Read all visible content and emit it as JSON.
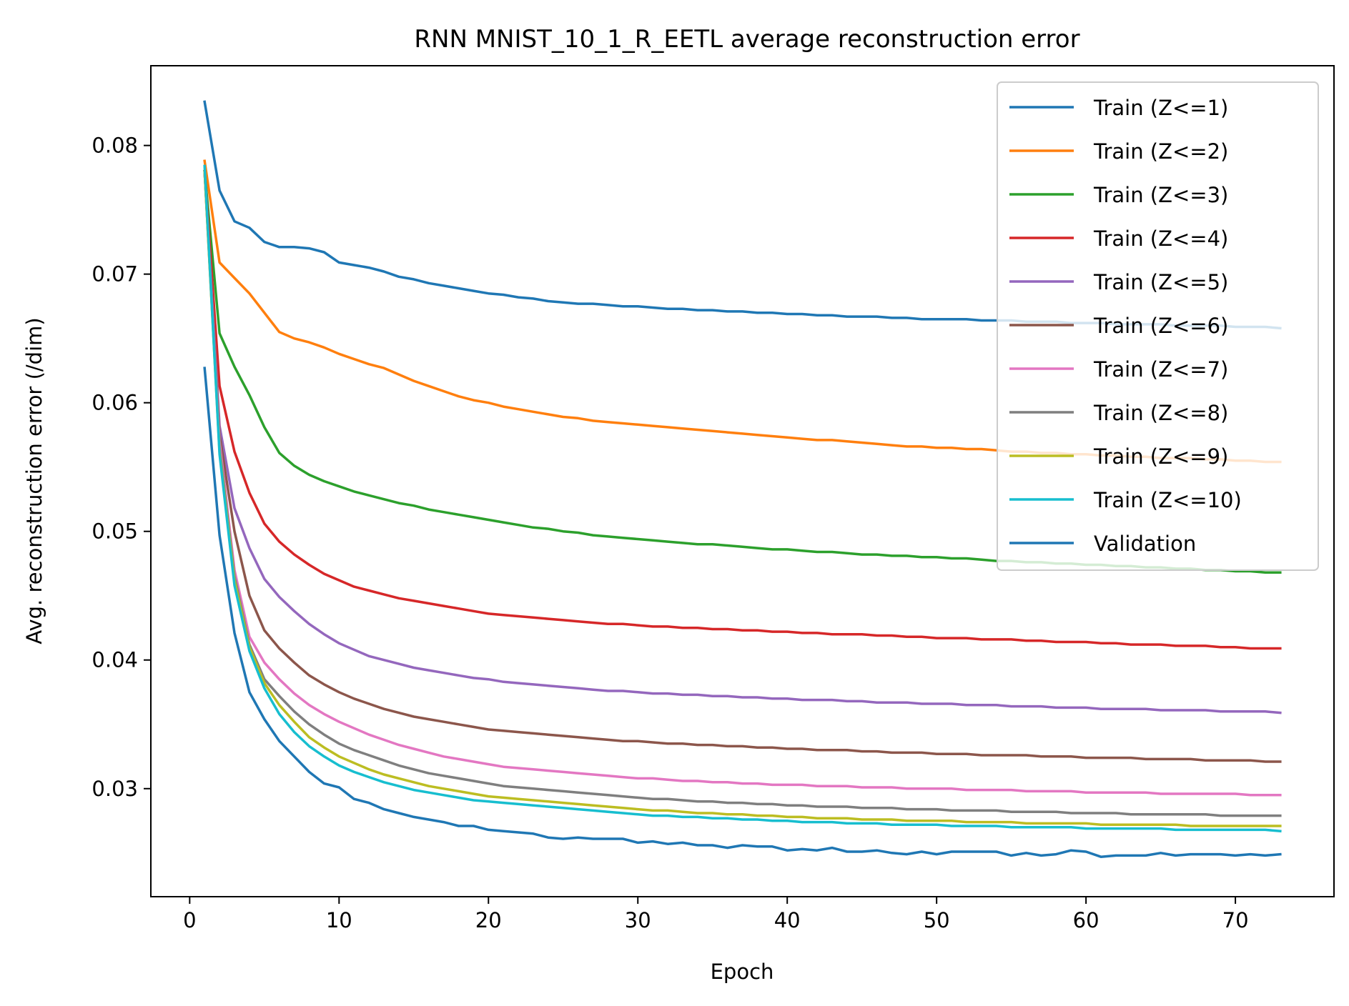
{
  "chart_data": {
    "type": "line",
    "title": "RNN MNIST_10_1_R_EETL average reconstruction error",
    "xlabel": "Epoch",
    "ylabel": "Avg. reconstruction error (/dim)",
    "xlim": [
      -2.6,
      76.6
    ],
    "ylim": [
      0.0216,
      0.0862
    ],
    "xticks": [
      0,
      10,
      20,
      30,
      40,
      50,
      60,
      70
    ],
    "yticks": [
      0.03,
      0.04,
      0.05,
      0.06,
      0.07,
      0.08
    ],
    "ytick_labels": [
      "0.03",
      "0.04",
      "0.05",
      "0.06",
      "0.07",
      "0.08"
    ],
    "xtick_labels": [
      "0",
      "10",
      "20",
      "30",
      "40",
      "50",
      "60",
      "70"
    ],
    "grid": false,
    "legend_position": "top-right",
    "x": [
      1,
      2,
      3,
      4,
      5,
      6,
      7,
      8,
      9,
      10,
      11,
      12,
      13,
      14,
      15,
      16,
      17,
      18,
      19,
      20,
      21,
      22,
      23,
      24,
      25,
      26,
      27,
      28,
      29,
      30,
      31,
      32,
      33,
      34,
      35,
      36,
      37,
      38,
      39,
      40,
      41,
      42,
      43,
      44,
      45,
      46,
      47,
      48,
      49,
      50,
      51,
      52,
      53,
      54,
      55,
      56,
      57,
      58,
      59,
      60,
      61,
      62,
      63,
      64,
      65,
      66,
      67,
      68,
      69,
      70,
      71,
      72,
      73
    ],
    "series": [
      {
        "name": "Train (Z<=1)",
        "color": "#1f77b4",
        "values": [
          0.0834,
          0.0765,
          0.0741,
          0.0736,
          0.0725,
          0.0721,
          0.0721,
          0.072,
          0.0717,
          0.0709,
          0.0707,
          0.0705,
          0.0702,
          0.0698,
          0.0696,
          0.0693,
          0.0691,
          0.0689,
          0.0687,
          0.0685,
          0.0684,
          0.0682,
          0.0681,
          0.0679,
          0.0678,
          0.0677,
          0.0677,
          0.0676,
          0.0675,
          0.0675,
          0.0674,
          0.0673,
          0.0673,
          0.0672,
          0.0672,
          0.0671,
          0.0671,
          0.067,
          0.067,
          0.0669,
          0.0669,
          0.0668,
          0.0668,
          0.0667,
          0.0667,
          0.0667,
          0.0666,
          0.0666,
          0.0665,
          0.0665,
          0.0665,
          0.0665,
          0.0664,
          0.0664,
          0.0664,
          0.0663,
          0.0663,
          0.0663,
          0.0662,
          0.0662,
          0.0662,
          0.0661,
          0.0661,
          0.0661,
          0.0661,
          0.066,
          0.066,
          0.066,
          0.066,
          0.0659,
          0.0659,
          0.0659,
          0.0658
        ]
      },
      {
        "name": "Train (Z<=2)",
        "color": "#ff7f0e",
        "values": [
          0.0788,
          0.0709,
          0.0697,
          0.0685,
          0.067,
          0.0655,
          0.065,
          0.0647,
          0.0643,
          0.0638,
          0.0634,
          0.063,
          0.0627,
          0.0622,
          0.0617,
          0.0613,
          0.0609,
          0.0605,
          0.0602,
          0.06,
          0.0597,
          0.0595,
          0.0593,
          0.0591,
          0.0589,
          0.0588,
          0.0586,
          0.0585,
          0.0584,
          0.0583,
          0.0582,
          0.0581,
          0.058,
          0.0579,
          0.0578,
          0.0577,
          0.0576,
          0.0575,
          0.0574,
          0.0573,
          0.0572,
          0.0571,
          0.0571,
          0.057,
          0.0569,
          0.0568,
          0.0567,
          0.0566,
          0.0566,
          0.0565,
          0.0565,
          0.0564,
          0.0564,
          0.0563,
          0.0562,
          0.0562,
          0.0561,
          0.0561,
          0.056,
          0.056,
          0.0559,
          0.0559,
          0.0558,
          0.0558,
          0.0557,
          0.0557,
          0.0557,
          0.0556,
          0.0556,
          0.0555,
          0.0555,
          0.0554,
          0.0554
        ]
      },
      {
        "name": "Train (Z<=3)",
        "color": "#2ca02c",
        "values": [
          0.078,
          0.0654,
          0.0628,
          0.0606,
          0.0581,
          0.0561,
          0.0551,
          0.0544,
          0.0539,
          0.0535,
          0.0531,
          0.0528,
          0.0525,
          0.0522,
          0.052,
          0.0517,
          0.0515,
          0.0513,
          0.0511,
          0.0509,
          0.0507,
          0.0505,
          0.0503,
          0.0502,
          0.05,
          0.0499,
          0.0497,
          0.0496,
          0.0495,
          0.0494,
          0.0493,
          0.0492,
          0.0491,
          0.049,
          0.049,
          0.0489,
          0.0488,
          0.0487,
          0.0486,
          0.0486,
          0.0485,
          0.0484,
          0.0484,
          0.0483,
          0.0482,
          0.0482,
          0.0481,
          0.0481,
          0.048,
          0.048,
          0.0479,
          0.0479,
          0.0478,
          0.0477,
          0.0477,
          0.0476,
          0.0476,
          0.0475,
          0.0475,
          0.0474,
          0.0474,
          0.0473,
          0.0473,
          0.0472,
          0.0472,
          0.0471,
          0.0471,
          0.047,
          0.047,
          0.0469,
          0.0469,
          0.0468,
          0.0468
        ]
      },
      {
        "name": "Train (Z<=4)",
        "color": "#d62728",
        "values": [
          0.078,
          0.0613,
          0.0562,
          0.053,
          0.0506,
          0.0492,
          0.0482,
          0.0474,
          0.0467,
          0.0462,
          0.0457,
          0.0454,
          0.0451,
          0.0448,
          0.0446,
          0.0444,
          0.0442,
          0.044,
          0.0438,
          0.0436,
          0.0435,
          0.0434,
          0.0433,
          0.0432,
          0.0431,
          0.043,
          0.0429,
          0.0428,
          0.0428,
          0.0427,
          0.0426,
          0.0426,
          0.0425,
          0.0425,
          0.0424,
          0.0424,
          0.0423,
          0.0423,
          0.0422,
          0.0422,
          0.0421,
          0.0421,
          0.042,
          0.042,
          0.042,
          0.0419,
          0.0419,
          0.0418,
          0.0418,
          0.0417,
          0.0417,
          0.0417,
          0.0416,
          0.0416,
          0.0416,
          0.0415,
          0.0415,
          0.0414,
          0.0414,
          0.0414,
          0.0413,
          0.0413,
          0.0412,
          0.0412,
          0.0412,
          0.0411,
          0.0411,
          0.0411,
          0.041,
          0.041,
          0.0409,
          0.0409,
          0.0409
        ]
      },
      {
        "name": "Train (Z<=5)",
        "color": "#9467bd",
        "values": [
          0.078,
          0.0582,
          0.0518,
          0.0487,
          0.0463,
          0.0449,
          0.0438,
          0.0428,
          0.042,
          0.0413,
          0.0408,
          0.0403,
          0.04,
          0.0397,
          0.0394,
          0.0392,
          0.039,
          0.0388,
          0.0386,
          0.0385,
          0.0383,
          0.0382,
          0.0381,
          0.038,
          0.0379,
          0.0378,
          0.0377,
          0.0376,
          0.0376,
          0.0375,
          0.0374,
          0.0374,
          0.0373,
          0.0373,
          0.0372,
          0.0372,
          0.0371,
          0.0371,
          0.037,
          0.037,
          0.0369,
          0.0369,
          0.0369,
          0.0368,
          0.0368,
          0.0367,
          0.0367,
          0.0367,
          0.0366,
          0.0366,
          0.0366,
          0.0365,
          0.0365,
          0.0365,
          0.0364,
          0.0364,
          0.0364,
          0.0363,
          0.0363,
          0.0363,
          0.0362,
          0.0362,
          0.0362,
          0.0362,
          0.0361,
          0.0361,
          0.0361,
          0.0361,
          0.036,
          0.036,
          0.036,
          0.036,
          0.0359
        ]
      },
      {
        "name": "Train (Z<=6)",
        "color": "#8c564b",
        "values": [
          0.078,
          0.0575,
          0.05,
          0.045,
          0.0423,
          0.0409,
          0.0398,
          0.0388,
          0.0381,
          0.0375,
          0.037,
          0.0366,
          0.0362,
          0.0359,
          0.0356,
          0.0354,
          0.0352,
          0.035,
          0.0348,
          0.0346,
          0.0345,
          0.0344,
          0.0343,
          0.0342,
          0.0341,
          0.034,
          0.0339,
          0.0338,
          0.0337,
          0.0337,
          0.0336,
          0.0335,
          0.0335,
          0.0334,
          0.0334,
          0.0333,
          0.0333,
          0.0332,
          0.0332,
          0.0331,
          0.0331,
          0.033,
          0.033,
          0.033,
          0.0329,
          0.0329,
          0.0328,
          0.0328,
          0.0328,
          0.0327,
          0.0327,
          0.0327,
          0.0326,
          0.0326,
          0.0326,
          0.0326,
          0.0325,
          0.0325,
          0.0325,
          0.0324,
          0.0324,
          0.0324,
          0.0324,
          0.0323,
          0.0323,
          0.0323,
          0.0323,
          0.0322,
          0.0322,
          0.0322,
          0.0322,
          0.0321,
          0.0321
        ]
      },
      {
        "name": "Train (Z<=7)",
        "color": "#e377c2",
        "values": [
          0.078,
          0.057,
          0.047,
          0.0418,
          0.0398,
          0.0385,
          0.0374,
          0.0365,
          0.0358,
          0.0352,
          0.0347,
          0.0342,
          0.0338,
          0.0334,
          0.0331,
          0.0328,
          0.0325,
          0.0323,
          0.0321,
          0.0319,
          0.0317,
          0.0316,
          0.0315,
          0.0314,
          0.0313,
          0.0312,
          0.0311,
          0.031,
          0.0309,
          0.0308,
          0.0308,
          0.0307,
          0.0306,
          0.0306,
          0.0305,
          0.0305,
          0.0304,
          0.0304,
          0.0303,
          0.0303,
          0.0303,
          0.0302,
          0.0302,
          0.0302,
          0.0301,
          0.0301,
          0.0301,
          0.03,
          0.03,
          0.03,
          0.03,
          0.0299,
          0.0299,
          0.0299,
          0.0299,
          0.0298,
          0.0298,
          0.0298,
          0.0298,
          0.0297,
          0.0297,
          0.0297,
          0.0297,
          0.0297,
          0.0296,
          0.0296,
          0.0296,
          0.0296,
          0.0296,
          0.0296,
          0.0295,
          0.0295,
          0.0295
        ]
      },
      {
        "name": "Train (Z<=8)",
        "color": "#7f7f7f",
        "values": [
          0.078,
          0.0565,
          0.0465,
          0.0412,
          0.0385,
          0.0372,
          0.036,
          0.035,
          0.0342,
          0.0335,
          0.033,
          0.0326,
          0.0322,
          0.0318,
          0.0315,
          0.0312,
          0.031,
          0.0308,
          0.0306,
          0.0304,
          0.0302,
          0.0301,
          0.03,
          0.0299,
          0.0298,
          0.0297,
          0.0296,
          0.0295,
          0.0294,
          0.0293,
          0.0292,
          0.0292,
          0.0291,
          0.029,
          0.029,
          0.0289,
          0.0289,
          0.0288,
          0.0288,
          0.0287,
          0.0287,
          0.0286,
          0.0286,
          0.0286,
          0.0285,
          0.0285,
          0.0285,
          0.0284,
          0.0284,
          0.0284,
          0.0283,
          0.0283,
          0.0283,
          0.0283,
          0.0282,
          0.0282,
          0.0282,
          0.0282,
          0.0281,
          0.0281,
          0.0281,
          0.0281,
          0.028,
          0.028,
          0.028,
          0.028,
          0.028,
          0.028,
          0.0279,
          0.0279,
          0.0279,
          0.0279,
          0.0279
        ]
      },
      {
        "name": "Train (Z<=9)",
        "color": "#bcbd22",
        "values": [
          0.078,
          0.0562,
          0.0462,
          0.041,
          0.0382,
          0.0365,
          0.0352,
          0.034,
          0.0332,
          0.0325,
          0.032,
          0.0315,
          0.0311,
          0.0308,
          0.0305,
          0.0302,
          0.03,
          0.0298,
          0.0296,
          0.0294,
          0.0293,
          0.0292,
          0.0291,
          0.029,
          0.0289,
          0.0288,
          0.0287,
          0.0286,
          0.0285,
          0.0284,
          0.0283,
          0.0283,
          0.0282,
          0.0281,
          0.0281,
          0.028,
          0.028,
          0.0279,
          0.0279,
          0.0278,
          0.0278,
          0.0277,
          0.0277,
          0.0277,
          0.0276,
          0.0276,
          0.0276,
          0.0275,
          0.0275,
          0.0275,
          0.0275,
          0.0274,
          0.0274,
          0.0274,
          0.0274,
          0.0273,
          0.0273,
          0.0273,
          0.0273,
          0.0273,
          0.0272,
          0.0272,
          0.0272,
          0.0272,
          0.0272,
          0.0272,
          0.0271,
          0.0271,
          0.0271,
          0.0271,
          0.0271,
          0.0271,
          0.0271
        ]
      },
      {
        "name": "Train (Z<=10)",
        "color": "#17becf",
        "values": [
          0.0784,
          0.056,
          0.0458,
          0.0407,
          0.0378,
          0.0358,
          0.0344,
          0.0333,
          0.0325,
          0.0318,
          0.0313,
          0.0309,
          0.0305,
          0.0302,
          0.0299,
          0.0297,
          0.0295,
          0.0293,
          0.0291,
          0.029,
          0.0289,
          0.0288,
          0.0287,
          0.0286,
          0.0285,
          0.0284,
          0.0283,
          0.0282,
          0.0281,
          0.028,
          0.0279,
          0.0279,
          0.0278,
          0.0278,
          0.0277,
          0.0277,
          0.0276,
          0.0276,
          0.0275,
          0.0275,
          0.0274,
          0.0274,
          0.0274,
          0.0273,
          0.0273,
          0.0273,
          0.0272,
          0.0272,
          0.0272,
          0.0272,
          0.0271,
          0.0271,
          0.0271,
          0.0271,
          0.027,
          0.027,
          0.027,
          0.027,
          0.027,
          0.0269,
          0.0269,
          0.0269,
          0.0269,
          0.0269,
          0.0269,
          0.0268,
          0.0268,
          0.0268,
          0.0268,
          0.0268,
          0.0268,
          0.0268,
          0.0267
        ]
      },
      {
        "name": "Validation",
        "color": "#1f77b4",
        "values": [
          0.0627,
          0.0497,
          0.0421,
          0.0375,
          0.0354,
          0.0337,
          0.0325,
          0.0313,
          0.0304,
          0.0301,
          0.0292,
          0.0289,
          0.0284,
          0.0281,
          0.0278,
          0.0276,
          0.0274,
          0.0271,
          0.0271,
          0.0268,
          0.0267,
          0.0266,
          0.0265,
          0.0262,
          0.0261,
          0.0262,
          0.0261,
          0.0261,
          0.0261,
          0.0258,
          0.0259,
          0.0257,
          0.0258,
          0.0256,
          0.0256,
          0.0254,
          0.0256,
          0.0255,
          0.0255,
          0.0252,
          0.0253,
          0.0252,
          0.0254,
          0.0251,
          0.0251,
          0.0252,
          0.025,
          0.0249,
          0.0251,
          0.0249,
          0.0251,
          0.0251,
          0.0251,
          0.0251,
          0.0248,
          0.025,
          0.0248,
          0.0249,
          0.0252,
          0.0251,
          0.0247,
          0.0248,
          0.0248,
          0.0248,
          0.025,
          0.0248,
          0.0249,
          0.0249,
          0.0249,
          0.0248,
          0.0249,
          0.0248,
          0.0249
        ]
      }
    ]
  }
}
